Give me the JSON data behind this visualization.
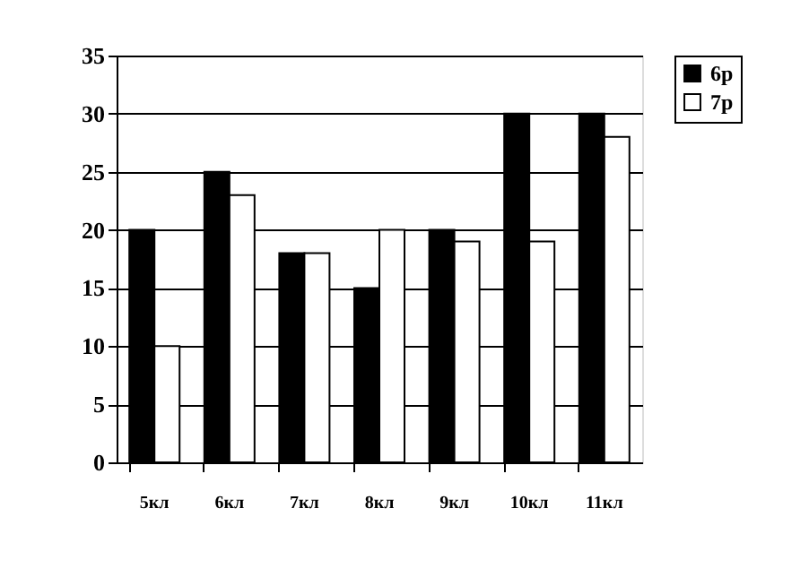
{
  "chart_data": {
    "type": "bar",
    "categories": [
      "5кл",
      "6кл",
      "7кл",
      "8кл",
      "9кл",
      "10кл",
      "11кл"
    ],
    "series": [
      {
        "name": "6р",
        "color": "#000000",
        "values": [
          20,
          25,
          18,
          15,
          20,
          30,
          30
        ]
      },
      {
        "name": "7р",
        "color": "#ffffff",
        "values": [
          10,
          23,
          18,
          20,
          19,
          19,
          28
        ]
      }
    ],
    "ylim": [
      0,
      35
    ],
    "yticks": [
      0,
      5,
      10,
      15,
      20,
      25,
      30,
      35
    ],
    "grid": "y",
    "legend": "right"
  }
}
